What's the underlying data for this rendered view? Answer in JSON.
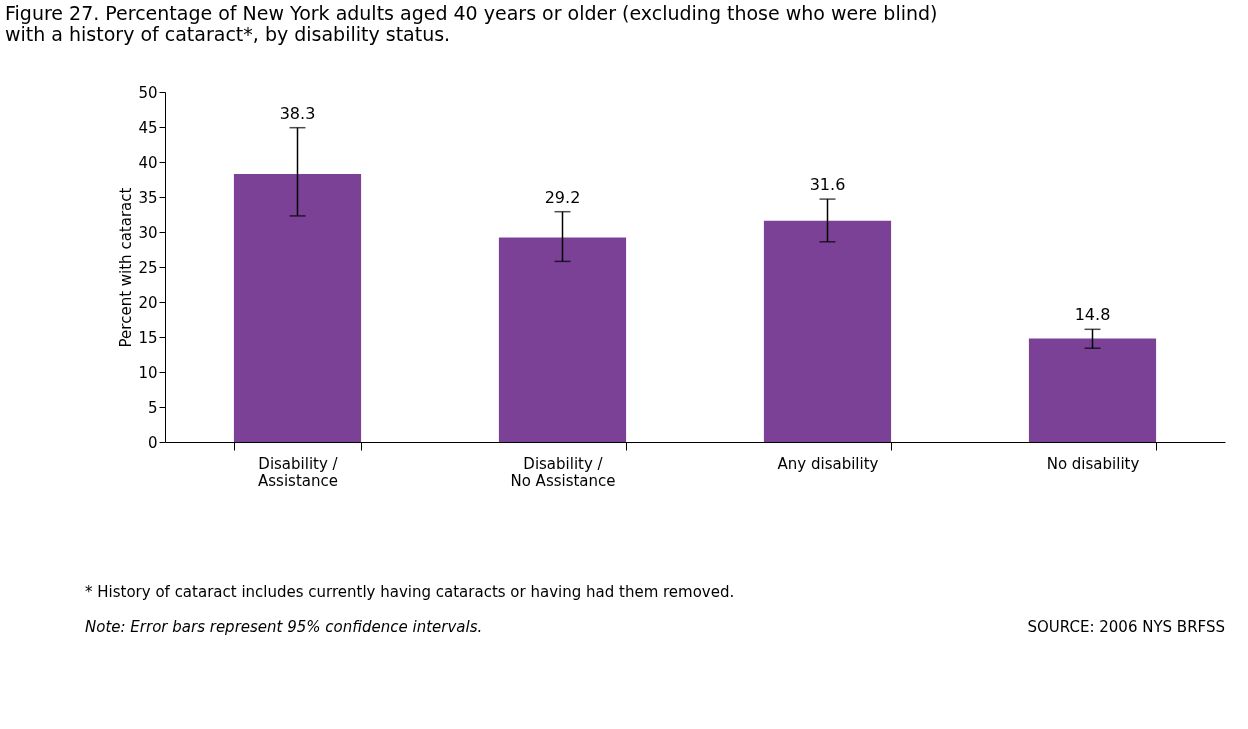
{
  "chart_data": {
    "type": "bar",
    "title": "Figure 27. Percentage of New York adults aged 40 years or older (excluding those who were blind) with a history of cataract*, by disability status.",
    "ylabel": "Percent with cataract",
    "categories": [
      "Disability / Assistance",
      "Disability / No Assistance",
      "Any disability",
      "No disability"
    ],
    "values": [
      38.3,
      29.2,
      31.6,
      14.8
    ],
    "errors": [
      [
        32.3,
        44.9
      ],
      [
        25.8,
        32.9
      ],
      [
        28.6,
        34.7
      ],
      [
        13.4,
        16.1
      ]
    ],
    "color": "#7b4197",
    "data_labels": true,
    "ylim": [
      0,
      50
    ],
    "yticks": [
      0,
      5,
      10,
      15,
      20,
      25,
      30,
      35,
      40,
      45,
      50
    ],
    "grid": false,
    "annotations": [
      "* History of cataract includes currently having cataracts or having had them removed.",
      "Note: Error bars represent 95% confidence intervals.",
      "SOURCE: 2006 NYS BRFSS"
    ]
  }
}
